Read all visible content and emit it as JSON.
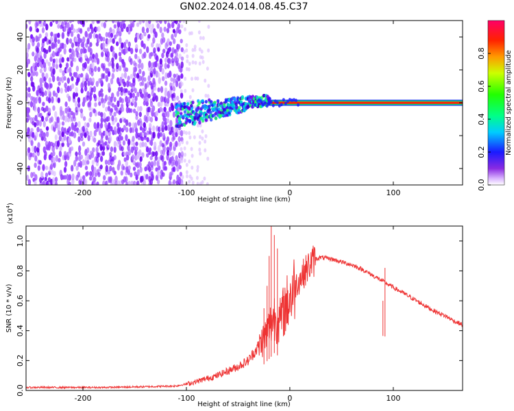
{
  "title": "GN02.2024.014.08.45.C37",
  "chart_data": [
    {
      "type": "heatmap",
      "xlabel": "Height of straight line (km)",
      "ylabel": "Frequency (Hz)",
      "xlim": [
        -255,
        167
      ],
      "ylim": [
        -50,
        50
      ],
      "x_ticks": [
        "-200",
        "-100",
        "0",
        "100"
      ],
      "x_tick_values": [
        -200,
        -100,
        0,
        100
      ],
      "y_ticks": [
        "-40",
        "-20",
        "0",
        "20",
        "40"
      ],
      "y_tick_values": [
        -40,
        -20,
        0,
        20,
        40
      ],
      "colorbar": {
        "label": "Normalized spectral amplitude",
        "range": [
          0,
          1
        ],
        "ticks": [
          "0.0",
          "0.2",
          "0.4",
          "0.6",
          "0.8"
        ],
        "tick_values": [
          0,
          0.2,
          0.4,
          0.6,
          0.8
        ]
      },
      "regions": [
        {
          "x_range": [
            -255,
            -105
          ],
          "freq_range": [
            -50,
            50
          ],
          "amplitude": "0.05-0.15 (noise)"
        },
        {
          "x_range": [
            -105,
            -78
          ],
          "freq_range": [
            -50,
            50
          ],
          "amplitude": "0.0-0.05 (sparse noise)"
        },
        {
          "x_range": [
            -110,
            -25
          ],
          "freq_center": [
            -8,
            2
          ],
          "amplitude": "0.1-0.6 (signal onset)"
        },
        {
          "x_range": [
            -25,
            167
          ],
          "freq_center": 0,
          "freq_halfwidth": 1.5,
          "amplitude": "0.9-1.0 (carrier)"
        }
      ]
    },
    {
      "type": "line",
      "xlabel": "Height of straight line (km)",
      "ylabel": "SNR (10 * v/v)",
      "y_multiplier": "(x10⁴)",
      "y_multiplier_base": "(x10",
      "y_multiplier_exp": "4",
      "y_multiplier_close": ")",
      "xlim": [
        -255,
        167
      ],
      "ylim": [
        0,
        1.1
      ],
      "x_ticks": [
        "-200",
        "-100",
        "0",
        "100"
      ],
      "x_tick_values": [
        -200,
        -100,
        0,
        100
      ],
      "y_ticks": [
        "0.0",
        "0.2",
        "0.4",
        "0.6",
        "0.8",
        "1.0"
      ],
      "y_tick_values": [
        0,
        0.2,
        0.4,
        0.6,
        0.8,
        1.0
      ],
      "color": "#ee3333",
      "series": [
        {
          "x": [
            -255,
            -220,
            -180,
            -140,
            -110,
            -95,
            -80,
            -70,
            -60,
            -50,
            -40,
            -32,
            -25,
            -20,
            -15,
            -10,
            -5,
            0,
            5,
            10,
            15,
            20,
            25,
            30,
            40,
            50,
            60,
            70,
            80,
            90,
            100,
            110,
            120,
            130,
            140,
            150,
            160,
            167
          ],
          "values": [
            0.02,
            0.02,
            0.02,
            0.025,
            0.03,
            0.05,
            0.08,
            0.1,
            0.13,
            0.16,
            0.2,
            0.28,
            0.35,
            0.42,
            0.5,
            0.45,
            0.55,
            0.62,
            0.7,
            0.75,
            0.8,
            0.85,
            0.88,
            0.89,
            0.88,
            0.86,
            0.84,
            0.81,
            0.77,
            0.73,
            0.69,
            0.65,
            0.61,
            0.57,
            0.53,
            0.5,
            0.46,
            0.44
          ]
        }
      ],
      "spikes": [
        {
          "x": -25,
          "value": 0.55
        },
        {
          "x": -22,
          "value": 0.7
        },
        {
          "x": -20,
          "value": 0.9
        },
        {
          "x": -18,
          "value": 1.1
        },
        {
          "x": -15,
          "value": 1.04
        },
        {
          "x": -12,
          "value": 0.95
        },
        {
          "x": 90,
          "value": 0.6
        },
        {
          "x": 92,
          "value": 0.82
        }
      ]
    }
  ]
}
